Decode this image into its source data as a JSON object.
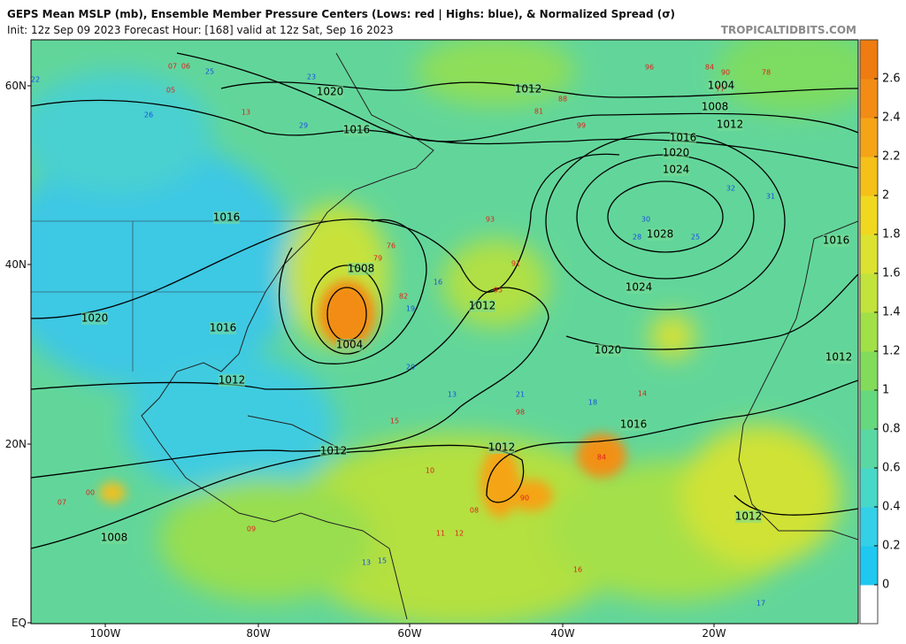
{
  "header": {
    "title": "GEPS Mean MSLP (mb), Ensemble Member Pressure Centers (Lows: red | Highs: blue), & Normalized Spread (σ)",
    "subtitle": "Init: 12z Sep 09 2023   Forecast Hour: [168]   valid at 12z Sat, Sep 16 2023",
    "credit": "TROPICALTIDBITS.COM"
  },
  "axes": {
    "lat_labels": [
      "60N",
      "40N",
      "20N",
      "EQ"
    ],
    "lon_labels": [
      "100W",
      "80W",
      "60W",
      "40W",
      "20W"
    ]
  },
  "colorbar": {
    "range": [
      -0.2,
      2.8
    ],
    "ticks": [
      0,
      0.2,
      0.4,
      0.6,
      0.8,
      1,
      1.2,
      1.4,
      1.6,
      1.8,
      2,
      2.2,
      2.4,
      2.6
    ],
    "colors": [
      "#ffffff",
      "#1ec8f0",
      "#33d0e8",
      "#48d8c8",
      "#5ad8a4",
      "#66d87e",
      "#82dc5a",
      "#a2e048",
      "#c2e23c",
      "#dce230",
      "#f0d820",
      "#f5c018",
      "#f5a416",
      "#f28c14",
      "#ee7c10"
    ]
  },
  "isobars": [
    "1020",
    "1016",
    "1012",
    "1004",
    "1008",
    "1012",
    "1016",
    "1020",
    "1024",
    "1028",
    "1024",
    "1020",
    "1016",
    "1012",
    "1008",
    "1004",
    "1016",
    "1020",
    "1016",
    "1012",
    "1012",
    "1012",
    "1008",
    "1016",
    "1012",
    "1012"
  ],
  "centers": [
    {
      "label": "07",
      "kind": "low"
    },
    {
      "label": "06",
      "kind": "low"
    },
    {
      "label": "25",
      "kind": "high"
    },
    {
      "label": "23",
      "kind": "high"
    },
    {
      "label": "05",
      "kind": "low"
    },
    {
      "label": "13",
      "kind": "low"
    },
    {
      "label": "26",
      "kind": "high"
    },
    {
      "label": "22",
      "kind": "high"
    },
    {
      "label": "29",
      "kind": "high"
    },
    {
      "label": "96",
      "kind": "low"
    },
    {
      "label": "84",
      "kind": "low"
    },
    {
      "label": "90",
      "kind": "low"
    },
    {
      "label": "78",
      "kind": "low"
    },
    {
      "label": "77",
      "kind": "low"
    },
    {
      "label": "88",
      "kind": "low"
    },
    {
      "label": "99",
      "kind": "low"
    },
    {
      "label": "81",
      "kind": "low"
    },
    {
      "label": "32",
      "kind": "high"
    },
    {
      "label": "31",
      "kind": "high"
    },
    {
      "label": "30",
      "kind": "high"
    },
    {
      "label": "28",
      "kind": "high"
    },
    {
      "label": "25",
      "kind": "high"
    },
    {
      "label": "93",
      "kind": "low"
    },
    {
      "label": "91",
      "kind": "low"
    },
    {
      "label": "95",
      "kind": "low"
    },
    {
      "label": "82",
      "kind": "low"
    },
    {
      "label": "79",
      "kind": "low"
    },
    {
      "label": "76",
      "kind": "low"
    },
    {
      "label": "16",
      "kind": "high"
    },
    {
      "label": "19",
      "kind": "high"
    },
    {
      "label": "20",
      "kind": "high"
    },
    {
      "label": "13",
      "kind": "high"
    },
    {
      "label": "21",
      "kind": "high"
    },
    {
      "label": "18",
      "kind": "high"
    },
    {
      "label": "15",
      "kind": "low"
    },
    {
      "label": "14",
      "kind": "low"
    },
    {
      "label": "84",
      "kind": "low"
    },
    {
      "label": "98",
      "kind": "low"
    },
    {
      "label": "90",
      "kind": "low"
    },
    {
      "label": "08",
      "kind": "low"
    },
    {
      "label": "12",
      "kind": "low"
    },
    {
      "label": "11",
      "kind": "low"
    },
    {
      "label": "10",
      "kind": "low"
    },
    {
      "label": "00",
      "kind": "low"
    },
    {
      "label": "07",
      "kind": "low"
    },
    {
      "label": "09",
      "kind": "low"
    },
    {
      "label": "13",
      "kind": "high"
    },
    {
      "label": "15",
      "kind": "high"
    },
    {
      "label": "17",
      "kind": "high"
    },
    {
      "label": "16",
      "kind": "low"
    }
  ]
}
